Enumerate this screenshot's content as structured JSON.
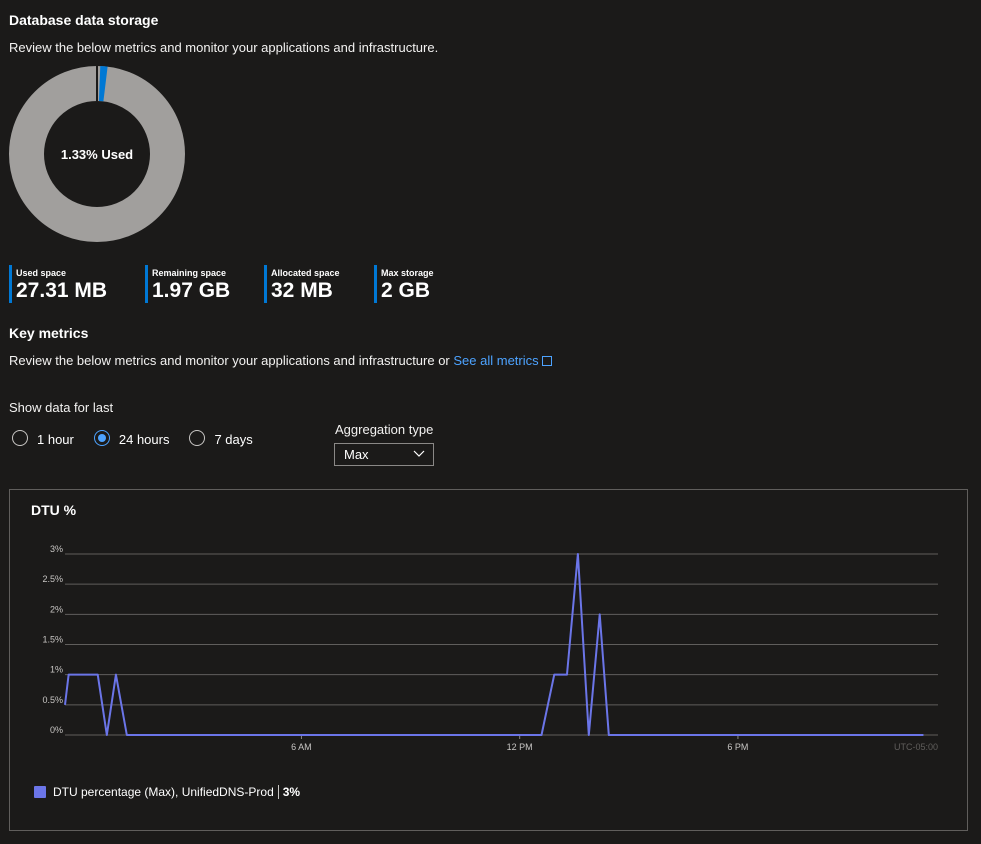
{
  "storage": {
    "title": "Database data storage",
    "description": "Review the below metrics and monitor your applications and infrastructure.",
    "donut_label": "1.33% Used",
    "used_fraction": 0.0133,
    "colors": {
      "used": "#0078d4",
      "remaining": "#a19f9d"
    },
    "stats": [
      {
        "label": "Used space",
        "value": "27.31 MB"
      },
      {
        "label": "Remaining space",
        "value": "1.97 GB"
      },
      {
        "label": "Allocated space",
        "value": "32 MB"
      },
      {
        "label": "Max storage",
        "value": "2 GB"
      }
    ]
  },
  "key_metrics": {
    "title": "Key metrics",
    "description": "Review the below metrics and monitor your applications and infrastructure or ",
    "link_text": "See all metrics",
    "show_data_label": "Show data for last",
    "time_options": [
      {
        "label": "1 hour",
        "checked": false
      },
      {
        "label": "24 hours",
        "checked": true
      },
      {
        "label": "7 days",
        "checked": false
      }
    ],
    "aggregation_label": "Aggregation type",
    "aggregation_value": "Max"
  },
  "chart": {
    "title": "DTU %",
    "timezone": "UTC-05:00",
    "legend_name": "DTU percentage (Max), UnifiedDNS-Prod",
    "legend_value": "3%"
  },
  "chart_data": {
    "type": "line",
    "title": "DTU %",
    "xlabel": "",
    "ylabel": "",
    "y_ticks": [
      "0%",
      "0.5%",
      "1%",
      "1.5%",
      "2%",
      "2.5%",
      "3%"
    ],
    "x_ticks": [
      {
        "hour": 6,
        "label": "6 AM"
      },
      {
        "hour": 12,
        "label": "12 PM"
      },
      {
        "hour": 18,
        "label": "6 PM"
      }
    ],
    "ylim": [
      0,
      3
    ],
    "xlim": [
      -0.5,
      23.5
    ],
    "grid": true,
    "legend": "bottom-left",
    "color": "#6b75e8",
    "series": [
      {
        "name": "DTU percentage (Max), UnifiedDNS-Prod",
        "x": [
          -0.5,
          -0.4,
          -0.1,
          0.3,
          0.4,
          0.65,
          0.9,
          1.2,
          1.5,
          12.6,
          12.95,
          13.3,
          13.6,
          13.9,
          14.2,
          14.45,
          14.8,
          23.1
        ],
        "y": [
          0.5,
          1,
          1,
          1,
          1,
          0,
          1,
          0,
          0,
          0,
          1,
          1,
          3,
          0,
          2,
          0,
          0,
          0
        ]
      }
    ]
  }
}
